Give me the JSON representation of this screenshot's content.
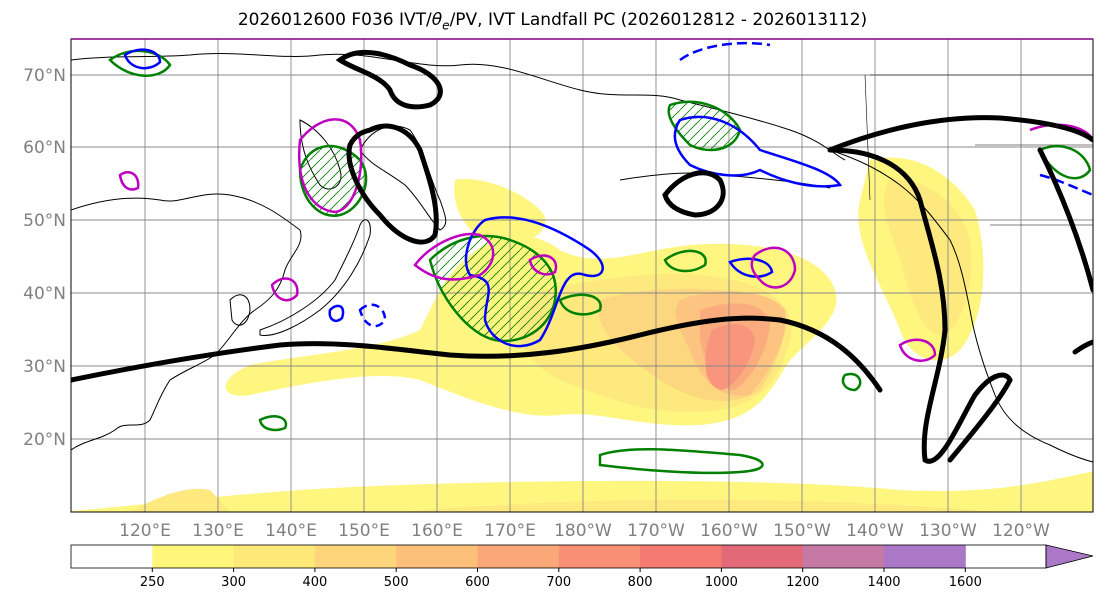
{
  "title": {
    "prefix": "2026012600 F036 IVT/",
    "theta": "θ",
    "theta_sub": "e",
    "suffix": "/PV, IVT Landfall PC (2026012812 - 2026013112)"
  },
  "map": {
    "lat_labels": [
      "70°N",
      "60°N",
      "50°N",
      "40°N",
      "30°N",
      "20°N"
    ],
    "lon_labels": [
      "120°E",
      "130°E",
      "140°E",
      "150°E",
      "160°E",
      "170°E",
      "180°W",
      "170°W",
      "160°W",
      "150°W",
      "140°W",
      "130°W",
      "120°W"
    ],
    "contour_colors": {
      "height_line": "#000000",
      "pv_green": "#008000",
      "theta_blue": "#0000ff",
      "theta_magenta": "#c000c0"
    }
  },
  "colorbar": {
    "labels": [
      "250",
      "300",
      "400",
      "500",
      "600",
      "700",
      "800",
      "1000",
      "1200",
      "1400",
      "1600"
    ],
    "colors": [
      "#ffffff",
      "#fff67a",
      "#fde878",
      "#fdd57a",
      "#fdc07a",
      "#fba878",
      "#f99076",
      "#f47a72",
      "#e26a78",
      "#c779a6",
      "#ab78c8"
    ]
  }
}
